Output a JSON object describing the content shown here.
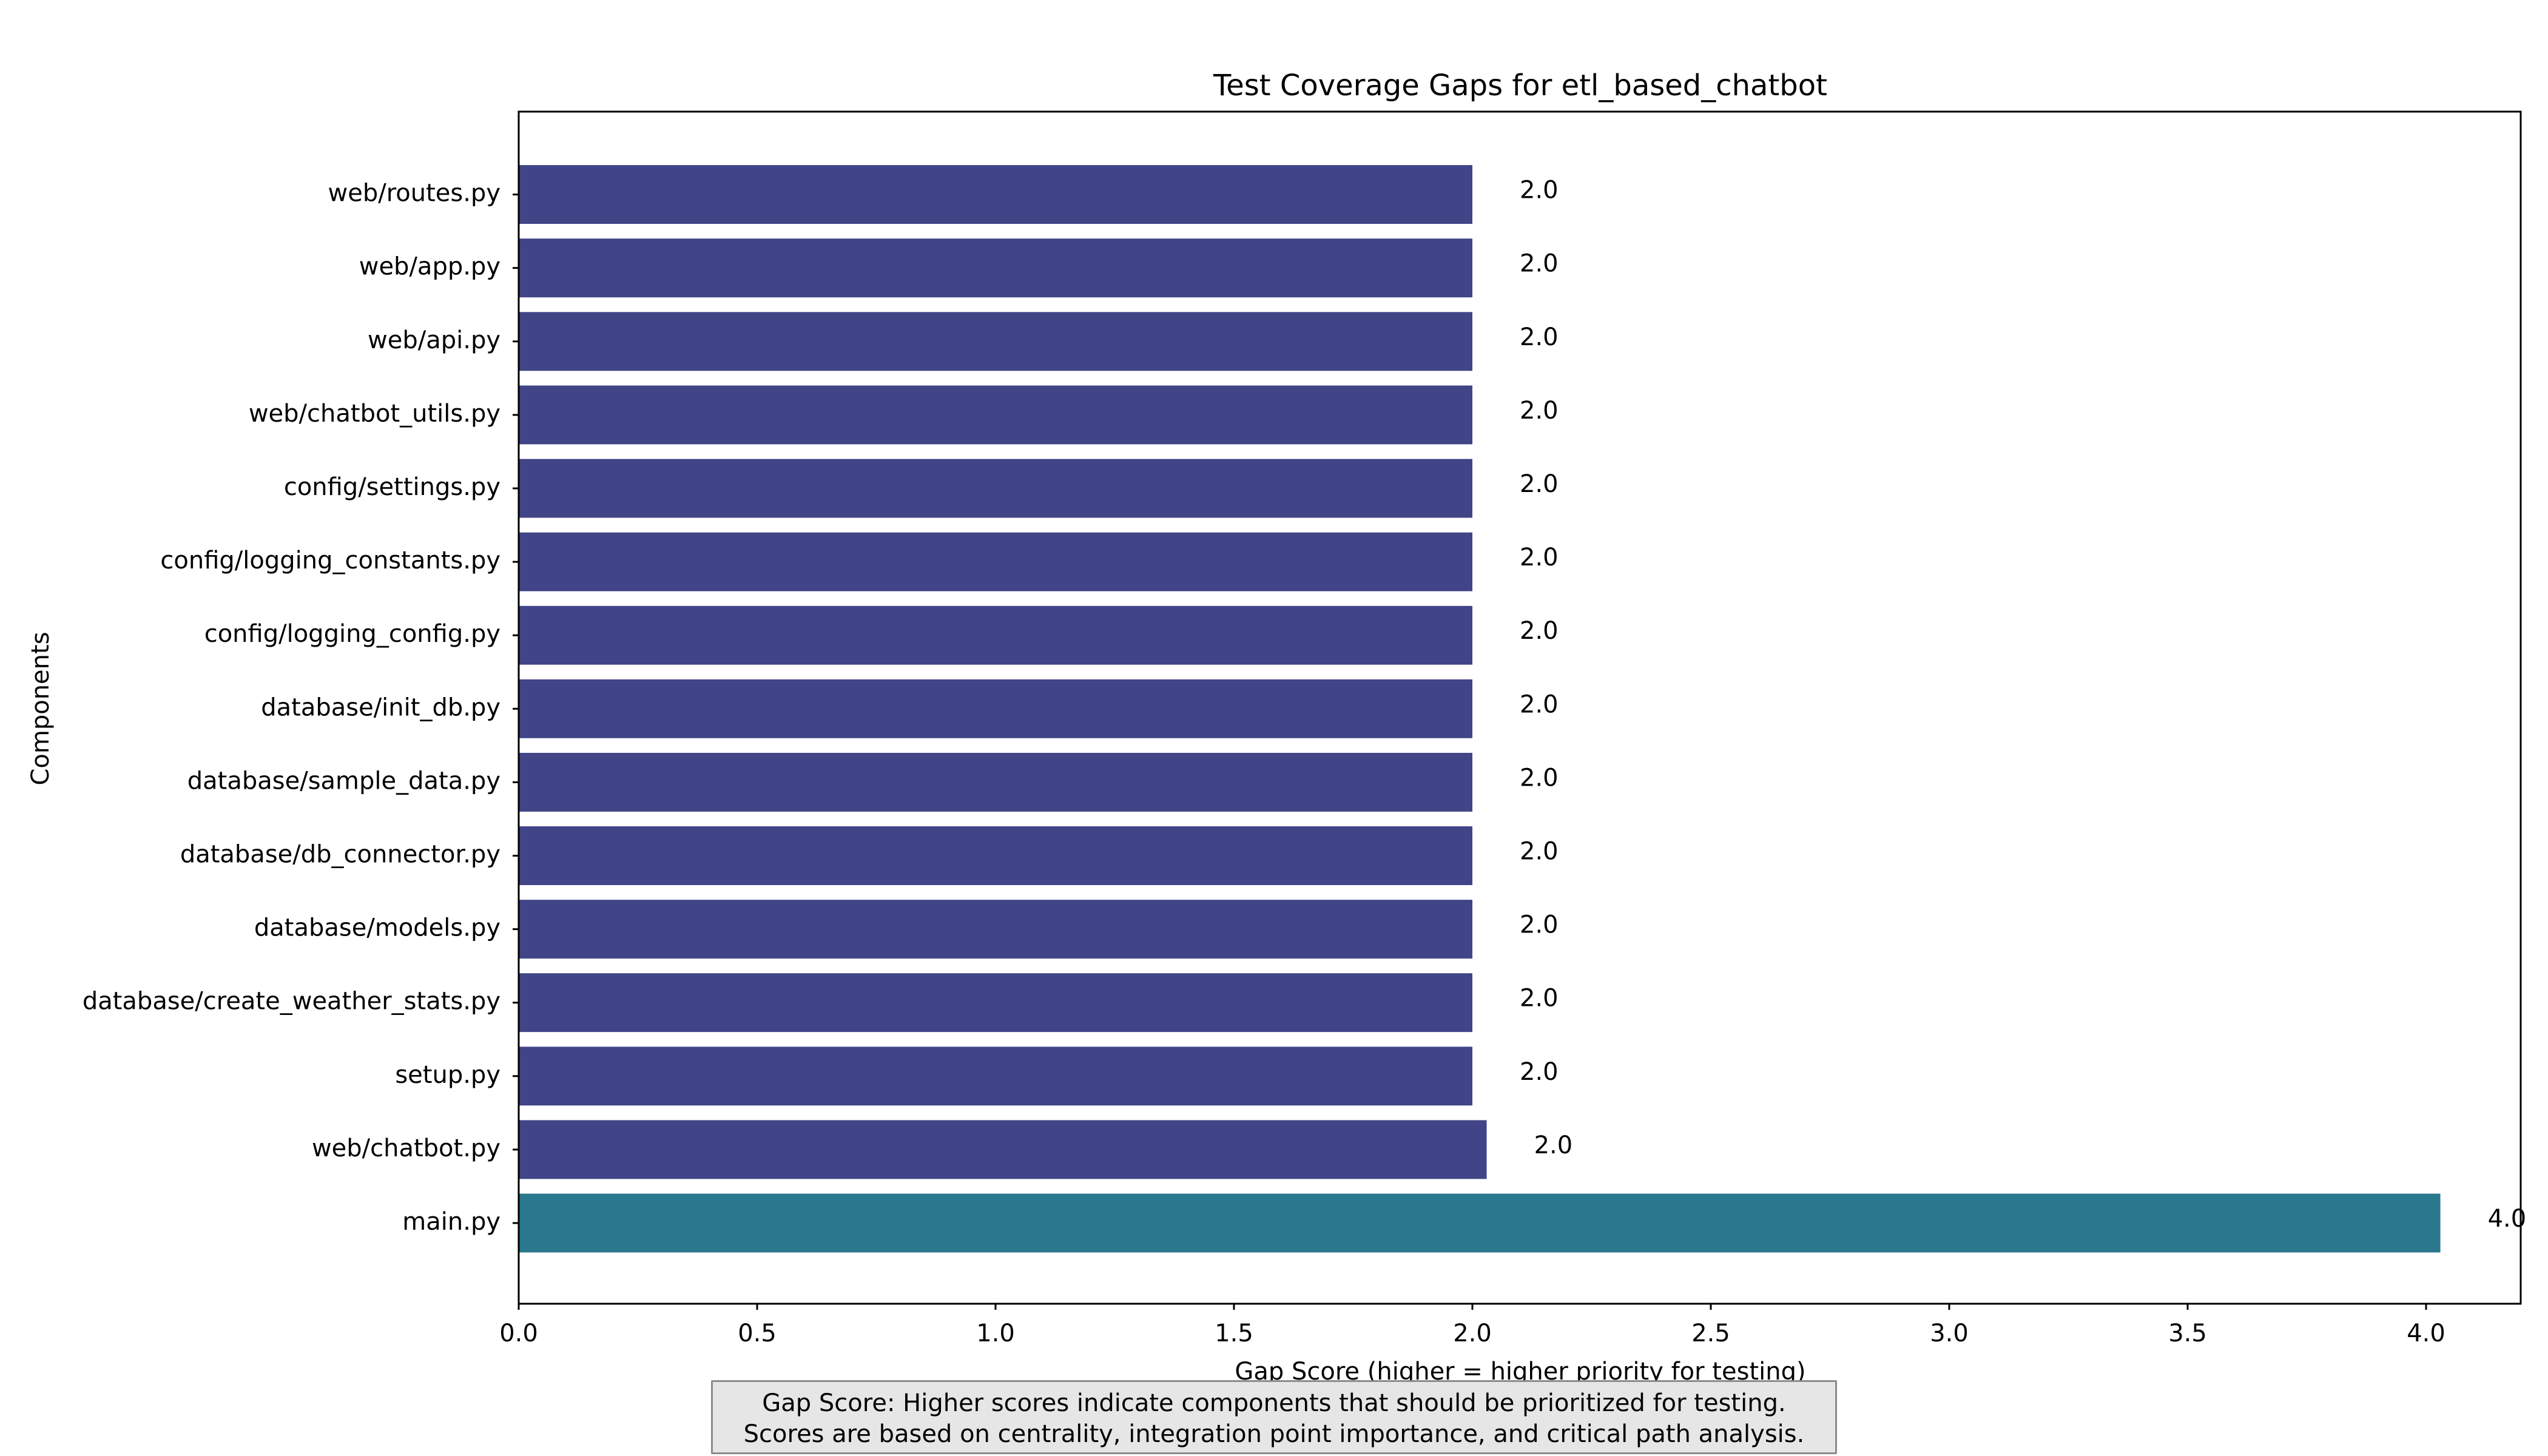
{
  "chart_data": {
    "type": "bar",
    "orientation": "horizontal",
    "title": "Test Coverage Gaps for etl_based_chatbot",
    "xlabel": "Gap Score (higher = higher priority for testing)",
    "ylabel": "Components",
    "xlim": [
      0,
      4.2
    ],
    "xticks": [
      "0.0",
      "0.5",
      "1.0",
      "1.5",
      "2.0",
      "2.5",
      "3.0",
      "3.5",
      "4.0"
    ],
    "grid": false,
    "categories": [
      "main.py",
      "web/chatbot.py",
      "setup.py",
      "database/create_weather_stats.py",
      "database/models.py",
      "database/db_connector.py",
      "database/sample_data.py",
      "database/init_db.py",
      "config/logging_config.py",
      "config/logging_constants.py",
      "config/settings.py",
      "web/chatbot_utils.py",
      "web/api.py",
      "web/app.py",
      "web/routes.py"
    ],
    "values": [
      4.03,
      2.03,
      2.0,
      2.0,
      2.0,
      2.0,
      2.0,
      2.0,
      2.0,
      2.0,
      2.0,
      2.0,
      2.0,
      2.0,
      2.0
    ],
    "value_labels": [
      "4.0",
      "2.0",
      "2.0",
      "2.0",
      "2.0",
      "2.0",
      "2.0",
      "2.0",
      "2.0",
      "2.0",
      "2.0",
      "2.0",
      "2.0",
      "2.0",
      "2.0"
    ],
    "bar_colors": [
      "#29788e",
      "#414487",
      "#414487",
      "#414487",
      "#414487",
      "#414487",
      "#414487",
      "#414487",
      "#414487",
      "#414487",
      "#414487",
      "#414487",
      "#414487",
      "#414487",
      "#414487"
    ]
  },
  "note": {
    "line1": "Gap Score: Higher scores indicate components that should be prioritized for testing.",
    "line2": "Scores are based on centrality, integration point importance, and critical path analysis."
  }
}
